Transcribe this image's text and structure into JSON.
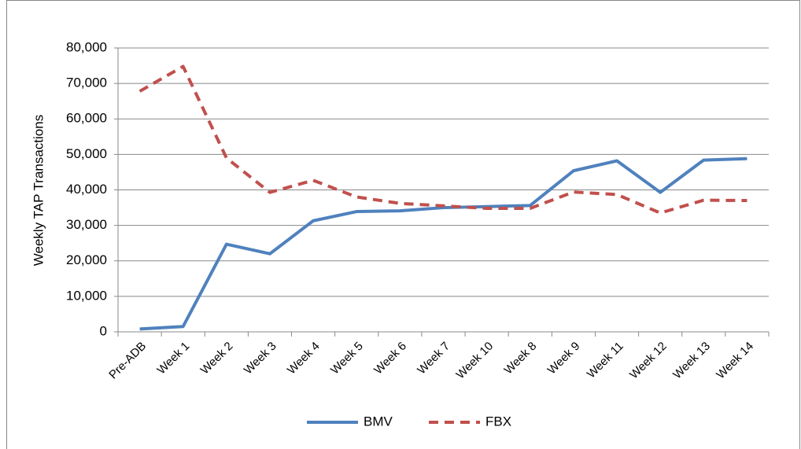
{
  "chart_data": {
    "type": "line",
    "y_label": "Weekly TAP Transactions",
    "categories": [
      "Pre-ADB",
      "Week 1",
      "Week 2",
      "Week 3",
      "Week 4",
      "Week 5",
      "Week 6",
      "Week 7",
      "Week 10",
      "Week 8",
      "Week 9",
      "Week 11",
      "Week 12",
      "Week 13",
      "Week 14"
    ],
    "series": [
      {
        "name": "BMV",
        "color": "#4f81bd",
        "dashed": false,
        "values": [
          800,
          1500,
          24700,
          22000,
          31300,
          33900,
          34100,
          35000,
          35300,
          35600,
          45400,
          48200,
          39300,
          48400,
          48800
        ]
      },
      {
        "name": "FBX",
        "color": "#c0504d",
        "dashed": true,
        "values": [
          67800,
          74800,
          49000,
          39300,
          42700,
          38000,
          36200,
          35500,
          34800,
          34800,
          39400,
          38700,
          33500,
          37100,
          37000
        ]
      }
    ],
    "ylim": [
      0,
      80000
    ],
    "yticks": [
      0,
      {
        "value": 10000,
        "label": "10,000"
      },
      {
        "value": 20000,
        "label": "20,000"
      },
      {
        "value": 30000,
        "label": "30,000"
      },
      {
        "value": 40000,
        "label": "40,000"
      },
      {
        "value": 50000,
        "label": "50,000"
      },
      {
        "value": 60000,
        "label": "60,000"
      },
      {
        "value": 70000,
        "label": "70,000"
      },
      {
        "value": 80000,
        "label": "80,000"
      }
    ],
    "grid": true,
    "legend": "bottom"
  }
}
